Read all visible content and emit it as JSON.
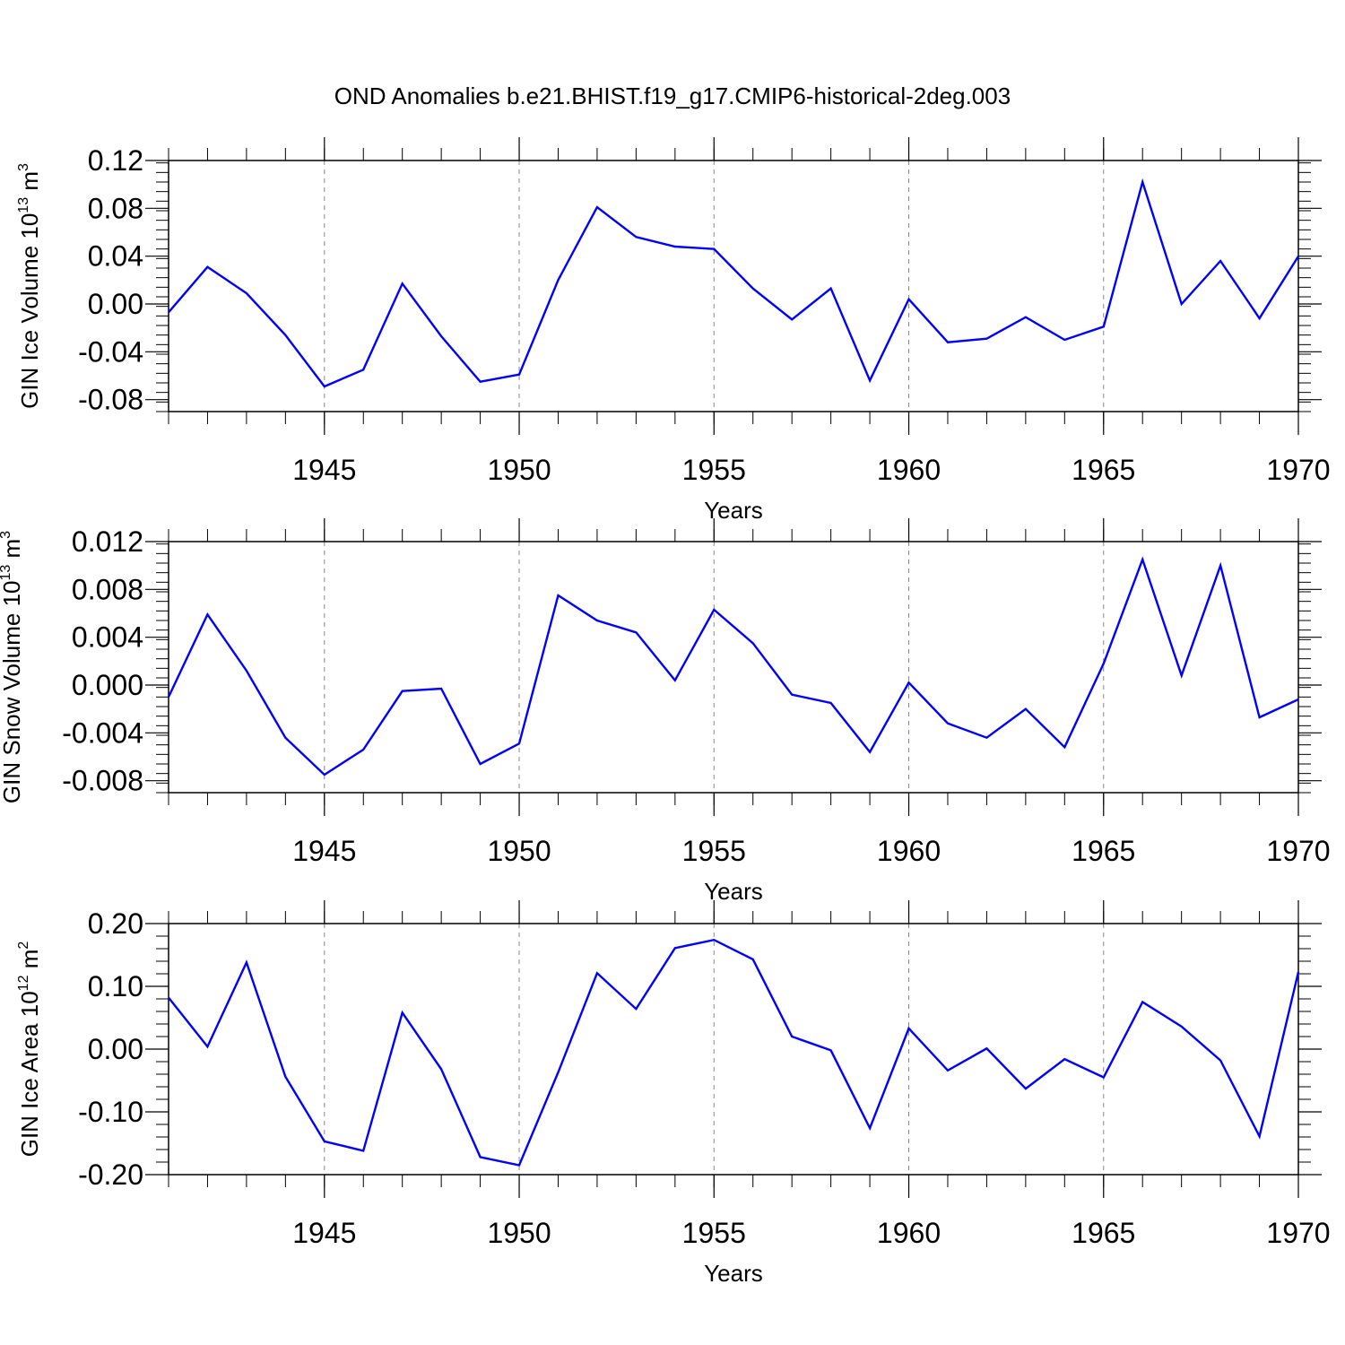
{
  "title": "OND Anomalies b.e21.BHIST.f19_g17.CMIP6-historical-2deg.003",
  "colors": {
    "line": "#0000ff",
    "axis": "#000000",
    "grid": "#888888"
  },
  "chart_data": [
    {
      "type": "line",
      "ylabel": "GIN Ice Volume 10",
      "ylabel_sup1": "13",
      "ylabel_mid": " m",
      "ylabel_sup2": "3",
      "xlabel": "Years",
      "xlim": [
        1941,
        1970
      ],
      "ylim": [
        -0.09,
        0.12
      ],
      "yticks": [
        -0.08,
        -0.04,
        0.0,
        0.04,
        0.08,
        0.12
      ],
      "ytick_labels": [
        "-0.08",
        "-0.04",
        "0.00",
        "0.04",
        "0.08",
        "0.12"
      ],
      "xticks": [
        1945,
        1950,
        1955,
        1960,
        1965,
        1970
      ],
      "xtick_labels": [
        "1945",
        "1950",
        "1955",
        "1960",
        "1965",
        "1970"
      ],
      "grid_x": [
        1945,
        1950,
        1955,
        1960,
        1965
      ],
      "x": [
        1941,
        1942,
        1943,
        1944,
        1945,
        1946,
        1947,
        1948,
        1949,
        1950,
        1951,
        1952,
        1953,
        1954,
        1955,
        1956,
        1957,
        1958,
        1959,
        1960,
        1961,
        1962,
        1963,
        1964,
        1965,
        1966,
        1967,
        1968,
        1969,
        1970
      ],
      "values": [
        -0.007,
        0.031,
        0.009,
        -0.026,
        -0.069,
        -0.055,
        0.017,
        -0.027,
        -0.065,
        -0.059,
        0.02,
        0.081,
        0.056,
        0.048,
        0.046,
        0.013,
        -0.013,
        0.013,
        -0.064,
        0.004,
        -0.032,
        -0.029,
        -0.011,
        -0.03,
        -0.019,
        0.102,
        0.0,
        0.036,
        -0.012,
        0.04
      ]
    },
    {
      "type": "line",
      "ylabel": "GIN Snow Volume 10",
      "ylabel_sup1": "13",
      "ylabel_mid": " m",
      "ylabel_sup2": "3",
      "xlabel": "Years",
      "xlim": [
        1941,
        1970
      ],
      "ylim": [
        -0.009,
        0.012
      ],
      "yticks": [
        -0.008,
        -0.004,
        0.0,
        0.004,
        0.008,
        0.012
      ],
      "ytick_labels": [
        "-0.008",
        "-0.004",
        "0.000",
        "0.004",
        "0.008",
        "0.012"
      ],
      "xticks": [
        1945,
        1950,
        1955,
        1960,
        1965,
        1970
      ],
      "xtick_labels": [
        "1945",
        "1950",
        "1955",
        "1960",
        "1965",
        "1970"
      ],
      "grid_x": [
        1945,
        1950,
        1955,
        1960,
        1965
      ],
      "x": [
        1941,
        1942,
        1943,
        1944,
        1945,
        1946,
        1947,
        1948,
        1949,
        1950,
        1951,
        1952,
        1953,
        1954,
        1955,
        1956,
        1957,
        1958,
        1959,
        1960,
        1961,
        1962,
        1963,
        1964,
        1965,
        1966,
        1967,
        1968,
        1969,
        1970
      ],
      "values": [
        -0.001,
        0.0059,
        0.0012,
        -0.0044,
        -0.0075,
        -0.0054,
        -0.0005,
        -0.0003,
        -0.0066,
        -0.0049,
        0.0075,
        0.0054,
        0.0044,
        0.0004,
        0.0063,
        0.0035,
        -0.0008,
        -0.0015,
        -0.0056,
        0.0002,
        -0.0032,
        -0.0044,
        -0.002,
        -0.0052,
        0.0018,
        0.0105,
        0.0008,
        0.01,
        -0.0027,
        -0.0012
      ]
    },
    {
      "type": "line",
      "ylabel": "GIN Ice Area 10",
      "ylabel_sup1": "12",
      "ylabel_mid": " m",
      "ylabel_sup2": "2",
      "xlabel": "Years",
      "xlim": [
        1941,
        1970
      ],
      "ylim": [
        -0.2,
        0.2
      ],
      "yticks": [
        -0.2,
        -0.1,
        0.0,
        0.1,
        0.2
      ],
      "ytick_labels": [
        "-0.20",
        "-0.10",
        "0.00",
        "0.10",
        "0.20"
      ],
      "xticks": [
        1945,
        1950,
        1955,
        1960,
        1965,
        1970
      ],
      "xtick_labels": [
        "1945",
        "1950",
        "1955",
        "1960",
        "1965",
        "1970"
      ],
      "grid_x": [
        1945,
        1950,
        1955,
        1960,
        1965
      ],
      "x": [
        1941,
        1942,
        1943,
        1944,
        1945,
        1946,
        1947,
        1948,
        1949,
        1950,
        1951,
        1952,
        1953,
        1954,
        1955,
        1956,
        1957,
        1958,
        1959,
        1960,
        1961,
        1962,
        1963,
        1964,
        1965,
        1966,
        1967,
        1968,
        1969,
        1970
      ],
      "values": [
        0.082,
        0.004,
        0.138,
        -0.044,
        -0.147,
        -0.162,
        0.058,
        -0.032,
        -0.172,
        -0.185,
        -0.037,
        0.121,
        0.064,
        0.161,
        0.174,
        0.143,
        0.02,
        -0.002,
        -0.126,
        0.033,
        -0.034,
        0.001,
        -0.063,
        -0.016,
        -0.045,
        0.075,
        0.036,
        -0.018,
        -0.139,
        0.123
      ]
    }
  ]
}
